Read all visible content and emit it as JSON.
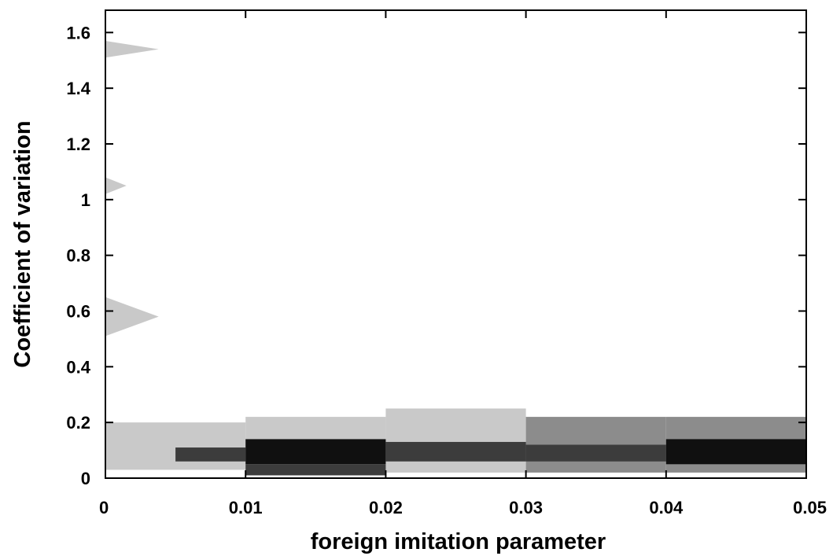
{
  "chart_data": {
    "type": "heatmap",
    "title": "",
    "xlabel": "foreign imitation parameter",
    "ylabel": "Coefficient of variation",
    "xlim": [
      0,
      0.05
    ],
    "ylim": [
      0,
      1.68
    ],
    "x_ticks": [
      {
        "value": 0,
        "label": "0"
      },
      {
        "value": 0.01,
        "label": "0.01"
      },
      {
        "value": 0.02,
        "label": "0.02"
      },
      {
        "value": 0.03,
        "label": "0.03"
      },
      {
        "value": 0.04,
        "label": "0.04"
      },
      {
        "value": 0.05,
        "label": "0.05"
      }
    ],
    "y_ticks": [
      {
        "value": 0,
        "label": "0"
      },
      {
        "value": 0.2,
        "label": "0.2"
      },
      {
        "value": 0.4,
        "label": "0.4"
      },
      {
        "value": 0.6,
        "label": "0.6"
      },
      {
        "value": 0.8,
        "label": "0.8"
      },
      {
        "value": 1.0,
        "label": "1"
      },
      {
        "value": 1.2,
        "label": "1.2"
      },
      {
        "value": 1.4,
        "label": "1.4"
      },
      {
        "value": 1.6,
        "label": "1.6"
      }
    ],
    "grid": false,
    "legend": "none",
    "colors": {
      "light": "#c9c9c9",
      "medium": "#8c8c8c",
      "dark": "#3c3c3c",
      "darkest": "#101010"
    },
    "bands": [
      {
        "x0": 0,
        "x1": 0.01,
        "y0": 0.03,
        "y1": 0.2,
        "level": "light"
      },
      {
        "x0": 0.01,
        "x1": 0.02,
        "y0": 0.02,
        "y1": 0.22,
        "level": "light"
      },
      {
        "x0": 0.02,
        "x1": 0.03,
        "y0": 0.02,
        "y1": 0.25,
        "level": "light"
      },
      {
        "x0": 0.03,
        "x1": 0.04,
        "y0": 0.02,
        "y1": 0.22,
        "level": "medium"
      },
      {
        "x0": 0.04,
        "x1": 0.05,
        "y0": 0.02,
        "y1": 0.22,
        "level": "medium"
      },
      {
        "x0": 0.005,
        "x1": 0.01,
        "y0": 0.06,
        "y1": 0.11,
        "level": "dark"
      },
      {
        "x0": 0.01,
        "x1": 0.02,
        "y0": 0.05,
        "y1": 0.14,
        "level": "darkest"
      },
      {
        "x0": 0.02,
        "x1": 0.03,
        "y0": 0.06,
        "y1": 0.13,
        "level": "dark"
      },
      {
        "x0": 0.03,
        "x1": 0.04,
        "y0": 0.06,
        "y1": 0.12,
        "level": "dark"
      },
      {
        "x0": 0.04,
        "x1": 0.05,
        "y0": 0.05,
        "y1": 0.14,
        "level": "darkest"
      },
      {
        "x0": 0.01,
        "x1": 0.02,
        "y0": 0.01,
        "y1": 0.05,
        "level": "dark"
      }
    ],
    "spikes": [
      {
        "x0": 0,
        "x1": 0.0038,
        "y_center": 1.54,
        "half_height": 0.03,
        "level": "light"
      },
      {
        "x0": 0,
        "x1": 0.0015,
        "y_center": 1.05,
        "half_height": 0.03,
        "level": "light"
      },
      {
        "x0": 0,
        "x1": 0.0038,
        "y_center": 0.58,
        "half_height": 0.07,
        "level": "light"
      }
    ]
  }
}
